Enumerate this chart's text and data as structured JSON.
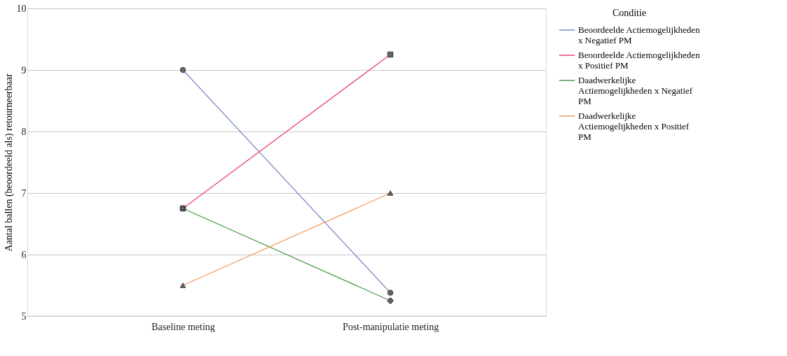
{
  "chart_data": {
    "type": "line",
    "ylabel": "Aantal ballen (beoordeeld als) retourneerbaar",
    "legend_title": "Conditie",
    "categories": [
      "Baseline meting",
      "Post-manipulatie meting"
    ],
    "series": [
      {
        "name": "Beoordeelde Actiemogelijkheden x Negatief PM",
        "color": "#7b8dc9",
        "marker": "circle",
        "values": [
          9.0,
          5.38
        ]
      },
      {
        "name": "Beoordeelde Actiemogelijkheden x Positief PM",
        "color": "#e8466b",
        "marker": "square",
        "values": [
          6.75,
          9.25
        ]
      },
      {
        "name": "Daadwerkelijke Actiemogelijkheden x Negatief PM",
        "color": "#4c9a48",
        "marker": "cross",
        "values": [
          6.75,
          5.25
        ]
      },
      {
        "name": "Daadwerkelijke Actiemogelijkheden x Positief PM",
        "color": "#f59a60",
        "marker": "triangle",
        "values": [
          5.5,
          7.0
        ]
      }
    ],
    "ylim": [
      5,
      10
    ],
    "yticks": [
      5,
      6,
      7,
      8,
      9,
      10
    ],
    "grid": "y",
    "legend": "top right"
  }
}
